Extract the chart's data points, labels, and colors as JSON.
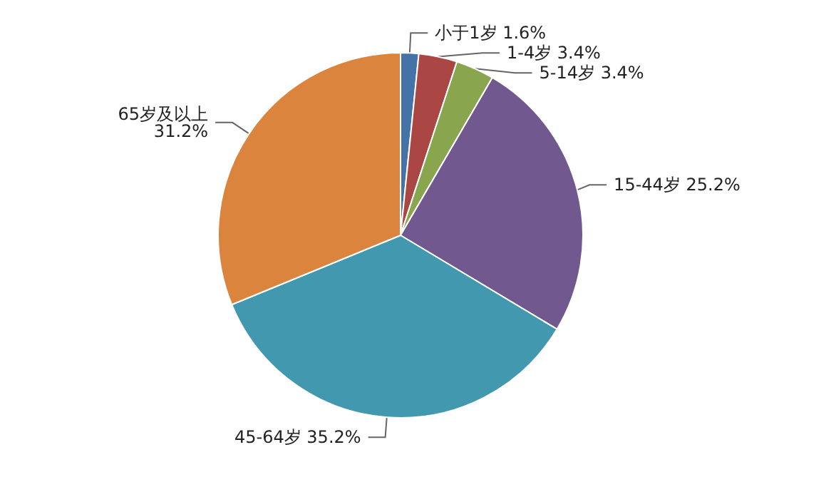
{
  "chart_data": {
    "type": "pie",
    "categories": [
      "小于1岁",
      "1-4岁",
      "5-14岁",
      "15-44岁",
      "45-64岁",
      "65岁及以上"
    ],
    "values": [
      1.6,
      3.4,
      3.4,
      25.2,
      35.2,
      31.2
    ],
    "value_labels": [
      "1.6%",
      "3.4%",
      "3.4%",
      "25.2%",
      "35.2%",
      "31.2%"
    ],
    "colors": [
      "#4572a7",
      "#aa4643",
      "#89a54e",
      "#71588f",
      "#4198af",
      "#db843d"
    ],
    "legend": false
  }
}
